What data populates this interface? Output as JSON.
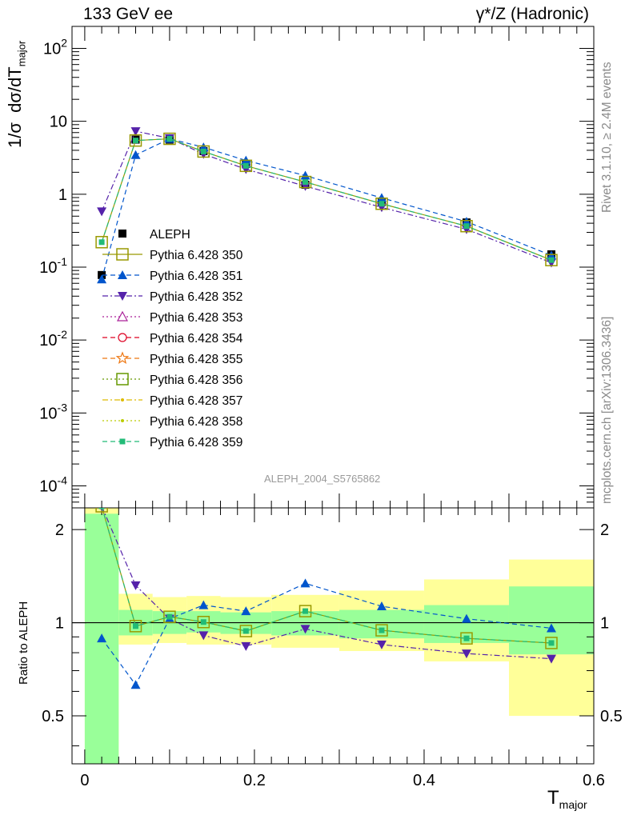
{
  "header": {
    "left": "133 GeV ee",
    "right": "γ*/Z (Hadronic)"
  },
  "side_texts": {
    "top": "Rivet 3.1.10, ≥ 2.4M events",
    "bottom": "mcplots.cern.ch [arXiv:1306.3436]"
  },
  "analysis_id": "ALEPH_2004_S5765862",
  "colors": {
    "data": "#000000",
    "s350": "#999900",
    "s351": "#0055cc",
    "s352": "#5522aa",
    "s359": "#22bb77",
    "band_inner": "#99ff99",
    "band_outer": "#ffff99"
  },
  "chart_data": [
    {
      "type": "line",
      "title": "",
      "ylabel": "1/σ dσ/dT_major",
      "yscale": "log",
      "ylim": [
        5e-05,
        200
      ],
      "xlim": [
        -0.015,
        0.6
      ],
      "grid": false,
      "legend_placement": "left",
      "yticks": [
        "10^{-4}",
        "10^{-3}",
        "10^{-2}",
        "10^{-1}",
        "1",
        "10",
        "10^{2}"
      ],
      "x": [
        0.02,
        0.06,
        0.1,
        0.14,
        0.19,
        0.26,
        0.35,
        0.45,
        0.55
      ],
      "data": {
        "name": "ALEPH",
        "values": [
          0.078,
          5.6,
          5.6,
          3.9,
          2.6,
          1.35,
          0.78,
          0.41,
          0.15
        ]
      },
      "series": [
        {
          "name": "Pythia 6.428 350",
          "values": [
            0.22,
            5.45,
            5.75,
            3.85,
            2.45,
            1.47,
            0.74,
            0.365,
            0.125
          ]
        },
        {
          "name": "Pythia 6.428 351",
          "values": [
            0.068,
            3.45,
            5.75,
            4.4,
            2.9,
            1.8,
            0.89,
            0.42,
            0.145
          ]
        },
        {
          "name": "Pythia 6.428 352",
          "values": [
            0.58,
            7.3,
            5.85,
            3.55,
            2.2,
            1.29,
            0.66,
            0.33,
            0.115
          ]
        },
        {
          "name": "Pythia 6.428 353",
          "values": [
            0.22,
            5.45,
            5.75,
            3.85,
            2.45,
            1.47,
            0.74,
            0.365,
            0.125
          ]
        },
        {
          "name": "Pythia 6.428 354",
          "values": [
            0.22,
            5.45,
            5.75,
            3.85,
            2.45,
            1.47,
            0.74,
            0.365,
            0.125
          ]
        },
        {
          "name": "Pythia 6.428 355",
          "values": [
            0.22,
            5.45,
            5.75,
            3.85,
            2.45,
            1.47,
            0.74,
            0.365,
            0.125
          ]
        },
        {
          "name": "Pythia 6.428 356",
          "values": [
            0.22,
            5.45,
            5.75,
            3.85,
            2.45,
            1.47,
            0.74,
            0.365,
            0.125
          ]
        },
        {
          "name": "Pythia 6.428 357",
          "values": [
            0.22,
            5.45,
            5.75,
            3.85,
            2.45,
            1.47,
            0.74,
            0.365,
            0.125
          ]
        },
        {
          "name": "Pythia 6.428 358",
          "values": [
            0.22,
            5.45,
            5.75,
            3.85,
            2.45,
            1.47,
            0.74,
            0.365,
            0.125
          ]
        },
        {
          "name": "Pythia 6.428 359",
          "values": [
            0.22,
            5.45,
            5.75,
            3.85,
            2.45,
            1.47,
            0.74,
            0.365,
            0.125
          ]
        }
      ]
    },
    {
      "type": "line",
      "title": "",
      "xlabel": "T_major",
      "ylabel": "Ratio to ALEPH",
      "yscale": "log",
      "ylim": [
        0.35,
        2.35
      ],
      "xlim": [
        -0.015,
        0.6
      ],
      "grid": false,
      "xticks": [
        "0",
        "0.2",
        "0.4",
        "0.6"
      ],
      "yticks": [
        "0.5",
        "1",
        "2"
      ],
      "x": [
        0.02,
        0.06,
        0.1,
        0.14,
        0.19,
        0.26,
        0.35,
        0.45,
        0.55
      ],
      "bands": {
        "edges": [
          0.0,
          0.04,
          0.08,
          0.12,
          0.16,
          0.22,
          0.3,
          0.4,
          0.5,
          0.6
        ],
        "inner": [
          [
            0.35,
            2.25
          ],
          [
            0.91,
            1.1
          ],
          [
            0.92,
            1.09
          ],
          [
            0.93,
            1.09
          ],
          [
            0.92,
            1.08
          ],
          [
            0.91,
            1.09
          ],
          [
            0.89,
            1.1
          ],
          [
            0.86,
            1.14
          ],
          [
            0.79,
            1.31
          ]
        ],
        "outer": [
          [
            0.35,
            2.35
          ],
          [
            0.85,
            1.24
          ],
          [
            0.86,
            1.21
          ],
          [
            0.85,
            1.22
          ],
          [
            0.85,
            1.21
          ],
          [
            0.83,
            1.23
          ],
          [
            0.81,
            1.27
          ],
          [
            0.75,
            1.38
          ],
          [
            0.5,
            1.6
          ]
        ]
      },
      "series": [
        {
          "name": "Pythia 6.428 350",
          "values": [
            2.82,
            0.975,
            1.045,
            1.005,
            0.94,
            1.09,
            0.945,
            0.89,
            0.86
          ]
        },
        {
          "name": "Pythia 6.428 351",
          "values": [
            0.89,
            0.63,
            1.03,
            1.14,
            1.09,
            1.34,
            1.13,
            1.03,
            0.96
          ]
        },
        {
          "name": "Pythia 6.428 352",
          "values": [
            7.4,
            1.32,
            1.03,
            0.91,
            0.84,
            0.955,
            0.85,
            0.795,
            0.765
          ]
        },
        {
          "name": "Pythia 6.428 359",
          "values": [
            2.82,
            0.975,
            1.045,
            1.005,
            0.94,
            1.09,
            0.945,
            0.89,
            0.86
          ]
        }
      ]
    }
  ]
}
